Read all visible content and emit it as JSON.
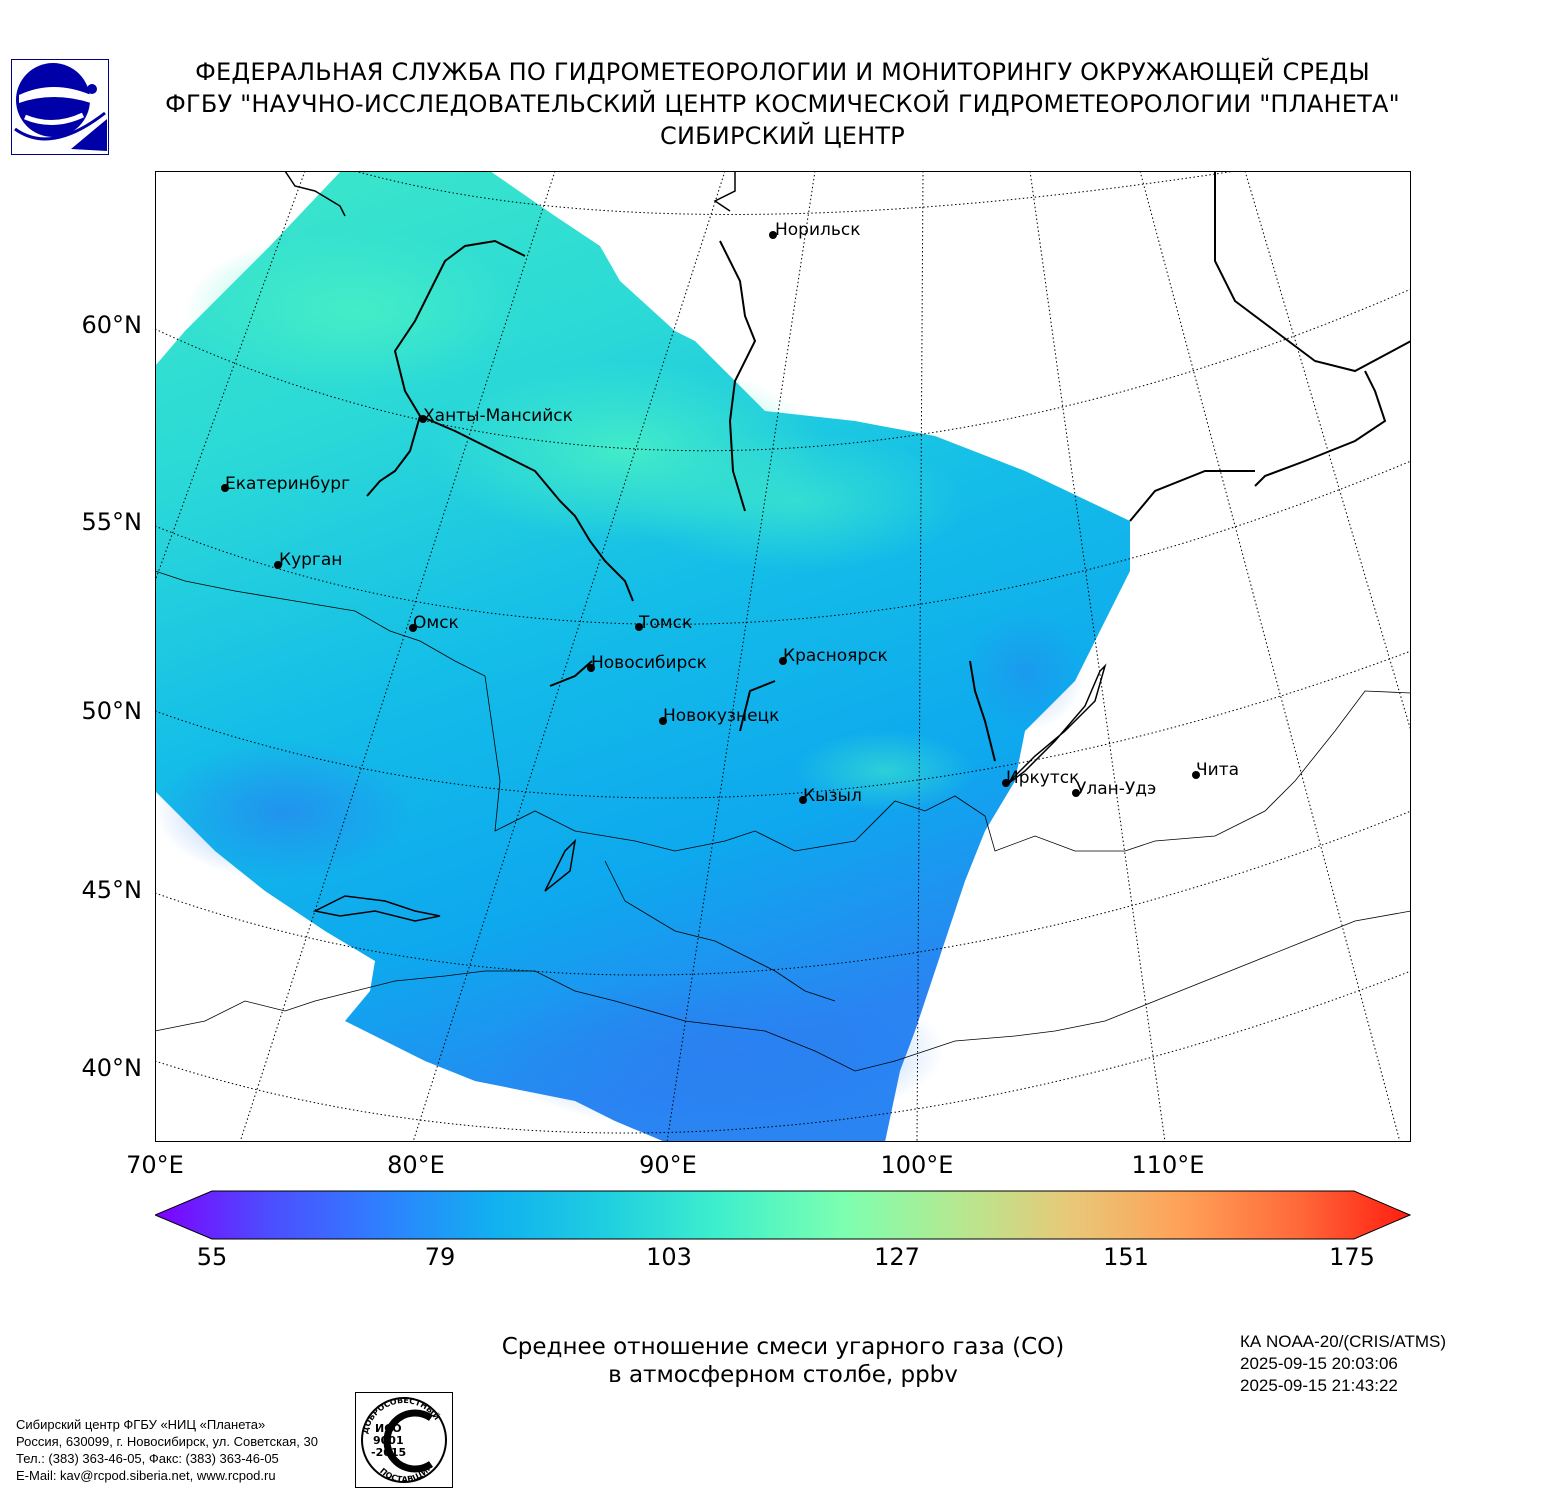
{
  "header": {
    "line1": "ФЕДЕРАЛЬНАЯ СЛУЖБА ПО ГИДРОМЕТЕОРОЛОГИИ И МОНИТОРИНГУ ОКРУЖАЮЩЕЙ СРЕДЫ",
    "line2": "ФГБУ \"НАУЧНО-ИССЛЕДОВАТЕЛЬСКИЙ ЦЕНТР КОСМИЧЕСКОЙ ГИДРОМЕТЕОРОЛОГИИ \"ПЛАНЕТА\"",
    "line3": "СИБИРСКИЙ ЦЕНТР"
  },
  "map": {
    "lat_labels": [
      "60°N",
      "55°N",
      "50°N",
      "45°N",
      "40°N"
    ],
    "lon_labels": [
      "70°E",
      "80°E",
      "90°E",
      "100°E",
      "110°E"
    ],
    "cities": [
      {
        "name": "Норильск"
      },
      {
        "name": "Ханты-Мансийск"
      },
      {
        "name": "Екатеринбург"
      },
      {
        "name": "Курган"
      },
      {
        "name": "Омск"
      },
      {
        "name": "Томск"
      },
      {
        "name": "Новосибирск"
      },
      {
        "name": "Красноярск"
      },
      {
        "name": "Новокузнецк"
      },
      {
        "name": "Иркутск"
      },
      {
        "name": "Улан-Удэ"
      },
      {
        "name": "Чита"
      },
      {
        "name": "Кызыл"
      }
    ]
  },
  "colorbar": {
    "ticks": [
      "55",
      "79",
      "103",
      "127",
      "151",
      "175"
    ],
    "colors": [
      "#7f00ff",
      "#4d4dff",
      "#2f7fff",
      "#11b0f0",
      "#1fcfe0",
      "#3fefcc",
      "#7dffb0",
      "#b5e890",
      "#e8c878",
      "#ffa057",
      "#ff6a3a",
      "#ff1d10"
    ]
  },
  "caption": {
    "line1": "Среднее отношение смеси угарного газа (CO)",
    "line2": "в атмосферном столбе, ppbv"
  },
  "satellite": {
    "name": "КА NOAA-20/(CRIS/ATMS)",
    "time_start": "2025-09-15 20:03:06",
    "time_end": "2025-09-15 21:43:22"
  },
  "footer": {
    "line1": "Сибирский центр ФГБУ «НИЦ «Планета»",
    "line2": "Россия, 630099, г. Новосибирск, ул. Советская, 30",
    "line3": "Тел.: (383) 363-46-05, Факс: (383) 363-46-05",
    "line4": "E-Mail: kav@rcpod.siberia.net, www.rcpod.ru"
  },
  "iso_stamp": {
    "top": "ДОБРОСОВЕСТНЫЙ",
    "bottom": "ПОСТАВЩИК",
    "iso1": "ИСО",
    "iso2": "9001",
    "iso3": "-2015"
  }
}
